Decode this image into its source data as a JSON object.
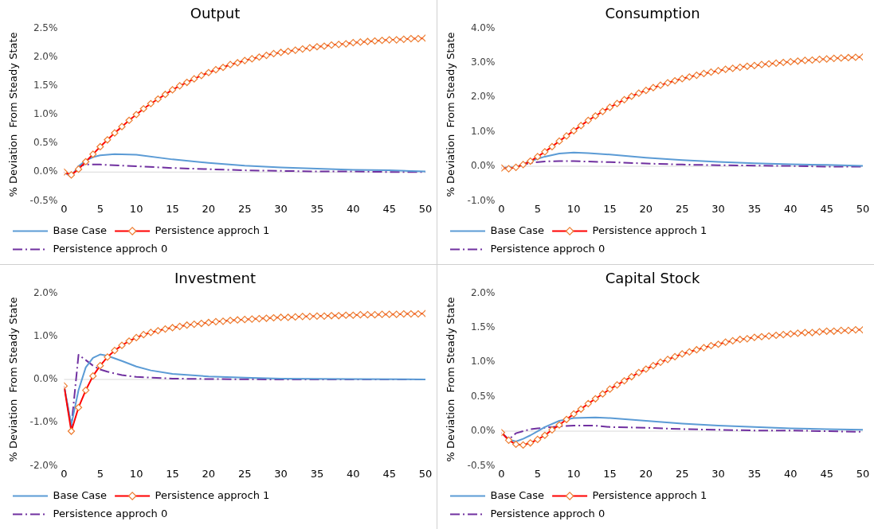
{
  "chart_data": [
    {
      "type": "line",
      "title": "Output",
      "ylabel": "% Deviation  From Steady State",
      "legend": "bottom",
      "grid": false,
      "ref_lines": [
        {
          "axis": "y",
          "value": 0,
          "color": "#d9d9d9"
        }
      ],
      "xlim": [
        0,
        50
      ],
      "xticks": [
        0,
        5,
        10,
        15,
        20,
        25,
        30,
        35,
        40,
        45,
        50
      ],
      "ylim": [
        -0.5,
        2.5
      ],
      "yticks": [
        {
          "value": -0.5,
          "label": "-0.5%"
        },
        {
          "value": 0,
          "label": "0.0%"
        },
        {
          "value": 0.5,
          "label": "0.5%"
        },
        {
          "value": 1,
          "label": "1.0%"
        },
        {
          "value": 1.5,
          "label": "1.5%"
        },
        {
          "value": 2,
          "label": "2.0%"
        },
        {
          "value": 2.5,
          "label": "2.5%"
        }
      ],
      "x": [
        0,
        1,
        2,
        3,
        4,
        5,
        6,
        7,
        8,
        9,
        10,
        11,
        12,
        13,
        14,
        15,
        16,
        17,
        18,
        19,
        20,
        21,
        22,
        23,
        24,
        25,
        26,
        27,
        28,
        29,
        30,
        31,
        32,
        33,
        34,
        35,
        36,
        37,
        38,
        39,
        40,
        41,
        42,
        43,
        44,
        45,
        46,
        47,
        48,
        49,
        50
      ],
      "series": [
        {
          "name": "Base Case",
          "color": "#5b9bd5",
          "marker": "none",
          "line_style": "solid",
          "x": [
            0,
            1,
            2,
            3,
            4,
            5,
            7,
            10,
            15,
            20,
            25,
            30,
            35,
            40,
            45,
            50
          ],
          "values": [
            0,
            -0.07,
            0.1,
            0.2,
            0.26,
            0.29,
            0.31,
            0.3,
            0.22,
            0.16,
            0.11,
            0.08,
            0.06,
            0.04,
            0.03,
            0.01
          ]
        },
        {
          "name": "Persistence approch 1",
          "color": "#ff0000",
          "marker": "diamond",
          "line_style": "solid",
          "values": [
            0,
            -0.05,
            0.05,
            0.18,
            0.31,
            0.44,
            0.56,
            0.68,
            0.79,
            0.9,
            1.0,
            1.1,
            1.19,
            1.27,
            1.35,
            1.43,
            1.5,
            1.56,
            1.62,
            1.68,
            1.73,
            1.78,
            1.82,
            1.87,
            1.9,
            1.94,
            1.97,
            2.0,
            2.03,
            2.06,
            2.08,
            2.1,
            2.12,
            2.14,
            2.16,
            2.18,
            2.19,
            2.21,
            2.22,
            2.23,
            2.25,
            2.26,
            2.27,
            2.28,
            2.29,
            2.3,
            2.3,
            2.31,
            2.32,
            2.32,
            2.33
          ]
        },
        {
          "name": "Persistence approch 0",
          "color": "#7030a0",
          "marker": "none",
          "line_style": "dashed",
          "x": [
            0,
            1,
            2,
            3,
            5,
            10,
            15,
            20,
            25,
            30,
            35,
            40,
            45,
            50
          ],
          "values": [
            0,
            -0.08,
            0.1,
            0.13,
            0.13,
            0.1,
            0.07,
            0.05,
            0.03,
            0.02,
            0.01,
            0.01,
            0,
            0
          ]
        }
      ]
    },
    {
      "type": "line",
      "title": "Consumption",
      "ylabel": "% Deviation  From Steady State",
      "legend": "bottom",
      "grid": false,
      "ref_lines": [
        {
          "axis": "y",
          "value": 0,
          "color": "#d9d9d9"
        }
      ],
      "xlim": [
        0,
        50
      ],
      "xticks": [
        0,
        5,
        10,
        15,
        20,
        25,
        30,
        35,
        40,
        45,
        50
      ],
      "ylim": [
        -1,
        4
      ],
      "yticks": [
        {
          "value": -1,
          "label": "-1.0%"
        },
        {
          "value": 0,
          "label": "0.0%"
        },
        {
          "value": 1,
          "label": "1.0%"
        },
        {
          "value": 2,
          "label": "2.0%"
        },
        {
          "value": 3,
          "label": "3.0%"
        },
        {
          "value": 4,
          "label": "4.0%"
        }
      ],
      "x": [
        0,
        1,
        2,
        3,
        4,
        5,
        6,
        7,
        8,
        9,
        10,
        11,
        12,
        13,
        14,
        15,
        16,
        17,
        18,
        19,
        20,
        21,
        22,
        23,
        24,
        25,
        26,
        27,
        28,
        29,
        30,
        31,
        32,
        33,
        34,
        35,
        36,
        37,
        38,
        39,
        40,
        41,
        42,
        43,
        44,
        45,
        46,
        47,
        48,
        49,
        50
      ],
      "series": [
        {
          "name": "Base Case",
          "color": "#5b9bd5",
          "marker": "none",
          "line_style": "solid",
          "x": [
            0,
            2,
            4,
            6,
            8,
            10,
            12,
            15,
            20,
            25,
            30,
            35,
            40,
            45,
            50
          ],
          "values": [
            -0.05,
            -0.03,
            0.15,
            0.28,
            0.37,
            0.4,
            0.38,
            0.34,
            0.25,
            0.18,
            0.13,
            0.09,
            0.06,
            0.04,
            0.01
          ]
        },
        {
          "name": "Persistence approch 1",
          "color": "#ff0000",
          "marker": "diamond",
          "line_style": "solid",
          "values": [
            -0.05,
            -0.07,
            -0.03,
            0.05,
            0.15,
            0.28,
            0.42,
            0.57,
            0.73,
            0.88,
            1.03,
            1.18,
            1.33,
            1.46,
            1.59,
            1.71,
            1.82,
            1.93,
            2.03,
            2.12,
            2.2,
            2.28,
            2.35,
            2.42,
            2.48,
            2.54,
            2.59,
            2.64,
            2.69,
            2.73,
            2.77,
            2.81,
            2.84,
            2.87,
            2.9,
            2.92,
            2.95,
            2.97,
            2.99,
            3.01,
            3.03,
            3.05,
            3.07,
            3.08,
            3.1,
            3.11,
            3.13,
            3.14,
            3.15,
            3.16,
            3.17
          ]
        },
        {
          "name": "Persistence approch 0",
          "color": "#7030a0",
          "marker": "none",
          "line_style": "dashed",
          "x": [
            0,
            2,
            4,
            6,
            8,
            10,
            15,
            20,
            25,
            30,
            35,
            40,
            45,
            50
          ],
          "values": [
            -0.05,
            -0.02,
            0.1,
            0.14,
            0.15,
            0.15,
            0.12,
            0.08,
            0.05,
            0.03,
            0.02,
            0.01,
            -0.01,
            -0.01
          ]
        }
      ]
    },
    {
      "type": "line",
      "title": "Investment",
      "ylabel": "% Deviation  From Steady State",
      "legend": "bottom",
      "grid": false,
      "ref_lines": [
        {
          "axis": "y",
          "value": 0,
          "color": "#d9d9d9"
        }
      ],
      "xlim": [
        0,
        50
      ],
      "xticks": [
        0,
        5,
        10,
        15,
        20,
        25,
        30,
        35,
        40,
        45,
        50
      ],
      "ylim": [
        -2,
        2
      ],
      "yticks": [
        {
          "value": -2,
          "label": "-2.0%"
        },
        {
          "value": -1,
          "label": "-1.0%"
        },
        {
          "value": 0,
          "label": "0.0%"
        },
        {
          "value": 1,
          "label": "1.0%"
        },
        {
          "value": 2,
          "label": "2.0%"
        }
      ],
      "x": [
        0,
        1,
        2,
        3,
        4,
        5,
        6,
        7,
        8,
        9,
        10,
        11,
        12,
        13,
        14,
        15,
        16,
        17,
        18,
        19,
        20,
        21,
        22,
        23,
        24,
        25,
        26,
        27,
        28,
        29,
        30,
        31,
        32,
        33,
        34,
        35,
        36,
        37,
        38,
        39,
        40,
        41,
        42,
        43,
        44,
        45,
        46,
        47,
        48,
        49,
        50
      ],
      "series": [
        {
          "name": "Base Case",
          "color": "#5b9bd5",
          "marker": "none",
          "line_style": "solid",
          "x": [
            0,
            1,
            2,
            3,
            4,
            5,
            6,
            8,
            10,
            12,
            15,
            20,
            25,
            30,
            40,
            50
          ],
          "values": [
            -0.15,
            -1.05,
            -0.25,
            0.28,
            0.5,
            0.58,
            0.55,
            0.43,
            0.3,
            0.21,
            0.13,
            0.07,
            0.04,
            0.02,
            0.01,
            0
          ]
        },
        {
          "name": "Persistence approch 1",
          "color": "#ff0000",
          "marker": "diamond",
          "line_style": "solid",
          "values": [
            -0.15,
            -1.2,
            -0.65,
            -0.25,
            0.08,
            0.32,
            0.52,
            0.67,
            0.79,
            0.89,
            0.97,
            1.04,
            1.09,
            1.13,
            1.17,
            1.2,
            1.23,
            1.26,
            1.28,
            1.3,
            1.32,
            1.34,
            1.35,
            1.37,
            1.38,
            1.39,
            1.4,
            1.41,
            1.42,
            1.43,
            1.44,
            1.44,
            1.45,
            1.46,
            1.46,
            1.47,
            1.47,
            1.48,
            1.48,
            1.49,
            1.49,
            1.5,
            1.5,
            1.5,
            1.51,
            1.51,
            1.51,
            1.52,
            1.52,
            1.52,
            1.53
          ]
        },
        {
          "name": "Persistence approch 0",
          "color": "#7030a0",
          "marker": "none",
          "line_style": "dashed",
          "x": [
            0,
            1,
            2,
            3,
            4,
            5,
            6,
            8,
            10,
            15,
            20,
            30,
            40,
            50
          ],
          "values": [
            -0.15,
            -1.1,
            0.57,
            0.45,
            0.32,
            0.23,
            0.18,
            0.1,
            0.06,
            0.02,
            0.01,
            0,
            0,
            0
          ]
        }
      ]
    },
    {
      "type": "line",
      "title": "Capital Stock",
      "ylabel": "% Deviation  From Steady State",
      "legend": "bottom",
      "grid": false,
      "ref_lines": [
        {
          "axis": "y",
          "value": 0,
          "color": "#d9d9d9"
        }
      ],
      "xlim": [
        0,
        50
      ],
      "xticks": [
        0,
        5,
        10,
        15,
        20,
        25,
        30,
        35,
        40,
        45,
        50
      ],
      "ylim": [
        -0.5,
        2
      ],
      "yticks": [
        {
          "value": -0.5,
          "label": "-0.5%"
        },
        {
          "value": 0,
          "label": "0.0%"
        },
        {
          "value": 0.5,
          "label": "0.5%"
        },
        {
          "value": 1,
          "label": "1.0%"
        },
        {
          "value": 1.5,
          "label": "1.5%"
        },
        {
          "value": 2,
          "label": "2.0%"
        }
      ],
      "x": [
        0,
        1,
        2,
        3,
        4,
        5,
        6,
        7,
        8,
        9,
        10,
        11,
        12,
        13,
        14,
        15,
        16,
        17,
        18,
        19,
        20,
        21,
        22,
        23,
        24,
        25,
        26,
        27,
        28,
        29,
        30,
        31,
        32,
        33,
        34,
        35,
        36,
        37,
        38,
        39,
        40,
        41,
        42,
        43,
        44,
        45,
        46,
        47,
        48,
        49,
        50
      ],
      "series": [
        {
          "name": "Base Case",
          "color": "#5b9bd5",
          "marker": "none",
          "line_style": "solid",
          "x": [
            0,
            1,
            2,
            3,
            4,
            5,
            6,
            8,
            10,
            13,
            15,
            20,
            25,
            30,
            35,
            40,
            45,
            50
          ],
          "values": [
            -0.02,
            -0.12,
            -0.15,
            -0.11,
            -0.06,
            0,
            0.06,
            0.15,
            0.19,
            0.2,
            0.19,
            0.15,
            0.11,
            0.08,
            0.06,
            0.04,
            0.03,
            0.02
          ]
        },
        {
          "name": "Persistence approch 1",
          "color": "#ff0000",
          "marker": "diamond",
          "line_style": "solid",
          "values": [
            -0.02,
            -0.13,
            -0.19,
            -0.2,
            -0.17,
            -0.12,
            -0.06,
            0.02,
            0.09,
            0.17,
            0.25,
            0.32,
            0.4,
            0.47,
            0.54,
            0.61,
            0.67,
            0.73,
            0.79,
            0.85,
            0.9,
            0.95,
            1.0,
            1.04,
            1.08,
            1.12,
            1.15,
            1.18,
            1.21,
            1.24,
            1.26,
            1.29,
            1.31,
            1.33,
            1.34,
            1.36,
            1.37,
            1.38,
            1.39,
            1.4,
            1.41,
            1.42,
            1.43,
            1.43,
            1.44,
            1.45,
            1.45,
            1.46,
            1.46,
            1.47,
            1.47
          ]
        },
        {
          "name": "Persistence approch 0",
          "color": "#7030a0",
          "marker": "none",
          "line_style": "dashed",
          "x": [
            0,
            1,
            2,
            3,
            4,
            5,
            6,
            8,
            10,
            13,
            15,
            20,
            25,
            30,
            35,
            40,
            45,
            50
          ],
          "values": [
            -0.02,
            -0.12,
            -0.03,
            0,
            0.03,
            0.04,
            0.05,
            0.07,
            0.08,
            0.08,
            0.06,
            0.05,
            0.03,
            0.02,
            0.01,
            0.01,
            0,
            -0.01
          ]
        }
      ]
    }
  ]
}
